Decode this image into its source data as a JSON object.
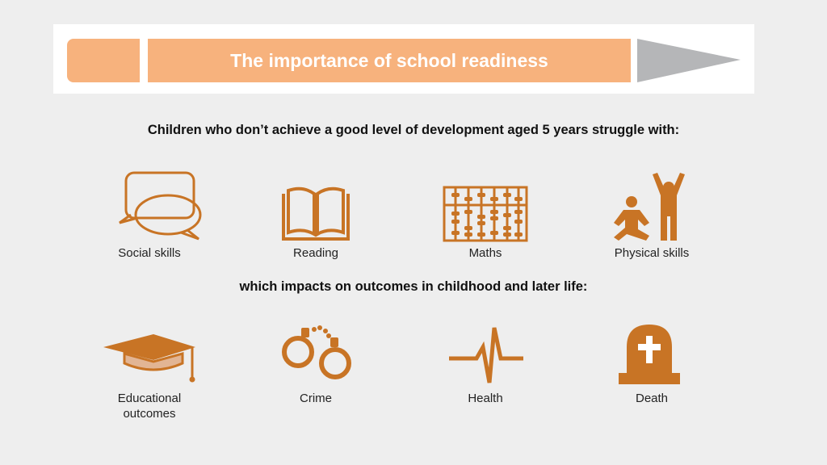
{
  "title": "The importance of school readiness",
  "heading_struggles": "Children who don’t achieve a good level of development aged 5 years struggle with:",
  "heading_impacts": "which impacts on outcomes in childhood and later life:",
  "struggles": [
    {
      "label": "Social skills",
      "icon": "speech-bubbles-icon"
    },
    {
      "label": "Reading",
      "icon": "open-book-icon"
    },
    {
      "label": "Maths",
      "icon": "abacus-icon"
    },
    {
      "label": "Physical skills",
      "icon": "exercising-people-icon"
    }
  ],
  "outcomes": [
    {
      "label_line1": "Educational",
      "label_line2": "outcomes",
      "icon": "graduation-cap-icon"
    },
    {
      "label": "Crime",
      "icon": "handcuffs-icon"
    },
    {
      "label": "Health",
      "icon": "heartbeat-icon"
    },
    {
      "label": "Death",
      "icon": "gravestone-icon"
    }
  ],
  "colors": {
    "accent": "#c87425",
    "pencil": "#f7b27d",
    "pencil_tip": "#b5b6b8",
    "background": "#eeeeee"
  }
}
